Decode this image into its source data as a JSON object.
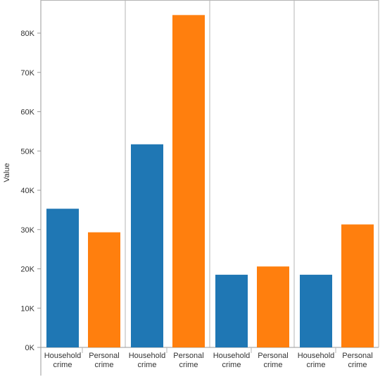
{
  "chart_data": {
    "type": "bar",
    "ylabel": "Value",
    "ylim": [
      0,
      88000
    ],
    "yticks": [
      "0K",
      "10K",
      "20K",
      "30K",
      "40K",
      "50K",
      "60K",
      "70K",
      "80K"
    ],
    "ytick_values": [
      0,
      10000,
      20000,
      30000,
      40000,
      50000,
      60000,
      70000,
      80000
    ],
    "grid": false,
    "panels": [
      {
        "categories": [
          "Household crime",
          "Personal crime"
        ],
        "values": [
          35300,
          29300
        ]
      },
      {
        "categories": [
          "Household crime",
          "Personal crime"
        ],
        "values": [
          51700,
          84600
        ]
      },
      {
        "categories": [
          "Household crime",
          "Personal crime"
        ],
        "values": [
          18500,
          20600
        ]
      },
      {
        "categories": [
          "Household crime",
          "Personal crime"
        ],
        "values": [
          18500,
          31300
        ]
      }
    ],
    "colors": {
      "Household crime": "#1f77b4",
      "Personal crime": "#ff7f0e"
    }
  }
}
